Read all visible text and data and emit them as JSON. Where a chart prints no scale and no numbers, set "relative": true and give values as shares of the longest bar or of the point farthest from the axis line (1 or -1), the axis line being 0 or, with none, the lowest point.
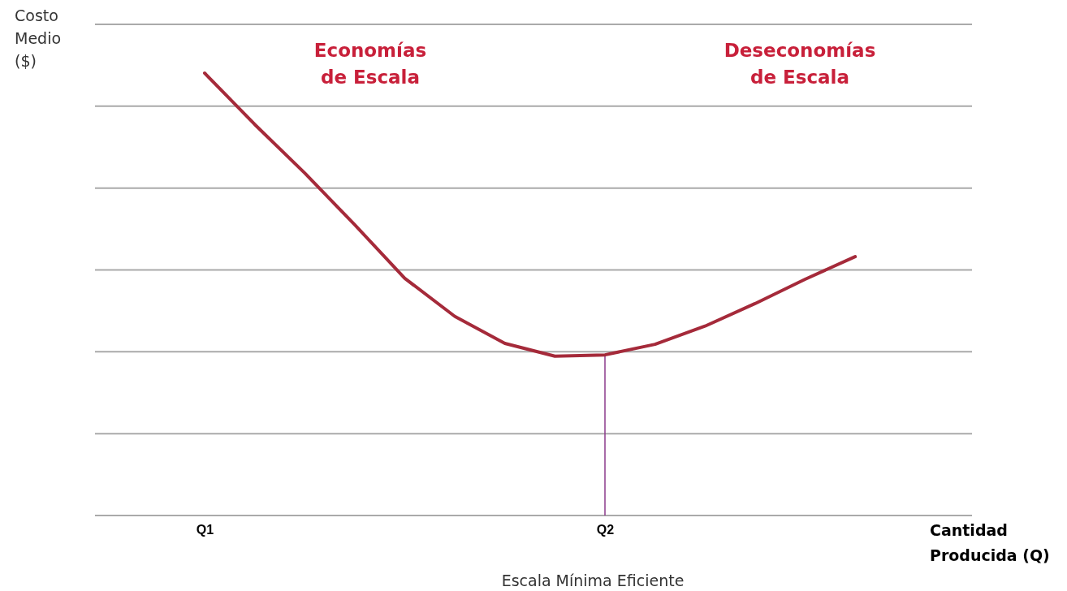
{
  "chart_data": {
    "type": "line",
    "relative": true,
    "xlabel": "Cantidad\nProducida (Q)",
    "categories": [
      "Q1",
      null,
      null,
      null,
      null,
      null,
      null,
      null,
      "Q2",
      null,
      null,
      null,
      null,
      null
    ],
    "grid": true,
    "marker": "none",
    "line_style": "solid",
    "series": [
      {
        "color": "#a52a3a",
        "values": [
          1,
          0.884,
          0.774,
          0.657,
          0.536,
          0.45,
          0.389,
          0.36,
          0.363,
          0.387,
          0.428,
          0.479,
          0.534,
          0.585
        ]
      }
    ],
    "ref_lines": [
      {
        "axis": "x",
        "value": "Q2",
        "color": "#8b3a8b"
      }
    ],
    "annotations": [
      "Economías\nde Escala",
      "Deseconomías\nde Escala",
      "Costo\nMedio\n($)",
      "Escala Mínima Eficiente"
    ]
  }
}
